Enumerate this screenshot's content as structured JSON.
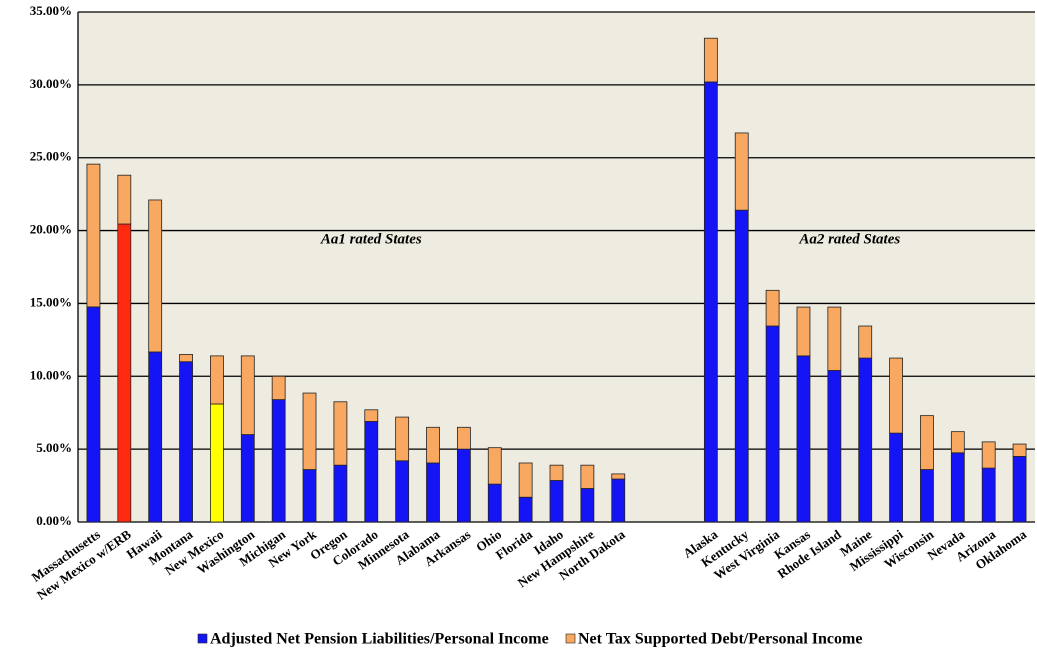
{
  "chart_data": {
    "type": "stacked_bar",
    "annotations": [
      "Aa1 rated States",
      "Aa2 rated States"
    ],
    "categories": [
      "Massachusetts",
      "New Mexico w/ERB",
      "Hawaii",
      "Montana",
      "New Mexico",
      "Washington",
      "Michigan",
      "New York",
      "Oregon",
      "Colorado",
      "Minnesota",
      "Alabama",
      "Arkansas",
      "Ohio",
      "Florida",
      "Idaho",
      "New Hampshire",
      "North Dakota",
      null,
      null,
      "Alaska",
      "Kentucky",
      "West Virginia",
      "Kansas",
      "Rhode Island",
      "Maine",
      "Mississippi",
      "Wisconsin",
      "Nevada",
      "Arizona",
      "Oklahoma"
    ],
    "series": [
      {
        "name": "Adjusted Net Pension Liabilities/Personal Income",
        "color": "#1414f5",
        "colors": [
          "#1414f5",
          "#ff2a10",
          "#1414f5",
          "#1414f5",
          "#ffff00",
          "#1414f5",
          "#1414f5",
          "#1414f5",
          "#1414f5",
          "#1414f5",
          "#1414f5",
          "#1414f5",
          "#1414f5",
          "#1414f5",
          "#1414f5",
          "#1414f5",
          "#1414f5",
          "#1414f5",
          null,
          null,
          "#1414f5",
          "#1414f5",
          "#1414f5",
          "#1414f5",
          "#1414f5",
          "#1414f5",
          "#1414f5",
          "#1414f5",
          "#1414f5",
          "#1414f5",
          "#1414f5"
        ],
        "values": [
          14.76,
          20.45,
          11.67,
          11.0,
          8.1,
          6.0,
          8.4,
          3.6,
          3.9,
          6.9,
          4.2,
          4.05,
          5.0,
          2.6,
          1.7,
          2.85,
          2.3,
          2.95,
          null,
          null,
          30.2,
          21.4,
          13.45,
          11.4,
          10.4,
          11.25,
          6.1,
          3.6,
          4.75,
          3.7,
          4.5
        ]
      },
      {
        "name": "Net Tax Supported Debt/Personal Income",
        "color": "#f8a860",
        "values": [
          9.8,
          3.35,
          10.43,
          0.5,
          3.3,
          5.4,
          1.6,
          5.25,
          4.35,
          0.8,
          3.0,
          2.45,
          1.5,
          2.5,
          2.35,
          1.05,
          1.6,
          0.35,
          null,
          null,
          3.0,
          5.3,
          2.45,
          3.35,
          4.35,
          2.2,
          5.15,
          3.7,
          1.45,
          1.8,
          0.85
        ]
      }
    ],
    "ylim": [
      0,
      35
    ],
    "yticks": [
      {
        "value": 0,
        "label": "0.00%"
      },
      {
        "value": 5,
        "label": "5.00%"
      },
      {
        "value": 10,
        "label": "10.00%"
      },
      {
        "value": 15,
        "label": "15.00%"
      },
      {
        "value": 20,
        "label": "20.00%"
      },
      {
        "value": 25,
        "label": "25.00%"
      },
      {
        "value": 30,
        "label": "30.00%"
      },
      {
        "value": 35,
        "label": "35.00%"
      }
    ],
    "grid": true
  }
}
